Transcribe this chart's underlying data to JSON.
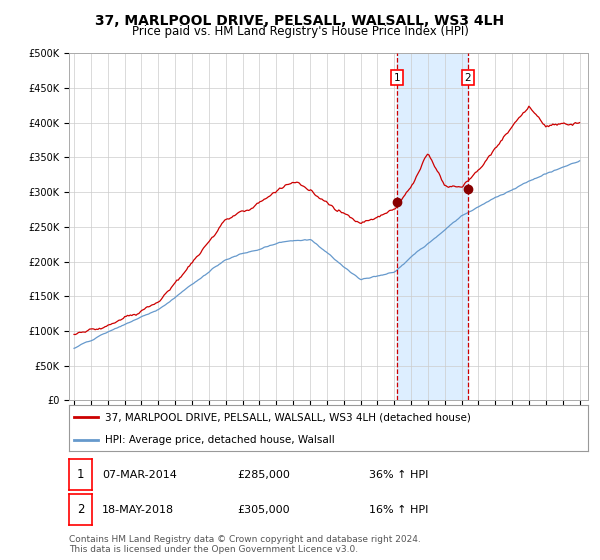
{
  "title": "37, MARLPOOL DRIVE, PELSALL, WALSALL, WS3 4LH",
  "subtitle": "Price paid vs. HM Land Registry's House Price Index (HPI)",
  "ylim": [
    0,
    500000
  ],
  "xlim_start": 1994.7,
  "xlim_end": 2025.5,
  "yticks": [
    0,
    50000,
    100000,
    150000,
    200000,
    250000,
    300000,
    350000,
    400000,
    450000,
    500000
  ],
  "ytick_labels": [
    "£0",
    "£50K",
    "£100K",
    "£150K",
    "£200K",
    "£250K",
    "£300K",
    "£350K",
    "£400K",
    "£450K",
    "£500K"
  ],
  "red_line_color": "#cc0000",
  "blue_line_color": "#6699cc",
  "shade_color": "#ddeeff",
  "dashed_line_color": "#cc0000",
  "marker_color": "#880000",
  "point1_x": 2014.17,
  "point1_y": 285000,
  "point2_x": 2018.38,
  "point2_y": 305000,
  "legend_line1": "37, MARLPOOL DRIVE, PELSALL, WALSALL, WS3 4LH (detached house)",
  "legend_line2": "HPI: Average price, detached house, Walsall",
  "table_row1_date": "07-MAR-2014",
  "table_row1_price": "£285,000",
  "table_row1_hpi": "36% ↑ HPI",
  "table_row2_date": "18-MAY-2018",
  "table_row2_price": "£305,000",
  "table_row2_hpi": "16% ↑ HPI",
  "footnote": "Contains HM Land Registry data © Crown copyright and database right 2024.\nThis data is licensed under the Open Government Licence v3.0.",
  "background_color": "#ffffff",
  "grid_color": "#cccccc",
  "title_fontsize": 10,
  "subtitle_fontsize": 8.5,
  "tick_fontsize": 7,
  "legend_fontsize": 7.5,
  "footnote_fontsize": 6.5
}
